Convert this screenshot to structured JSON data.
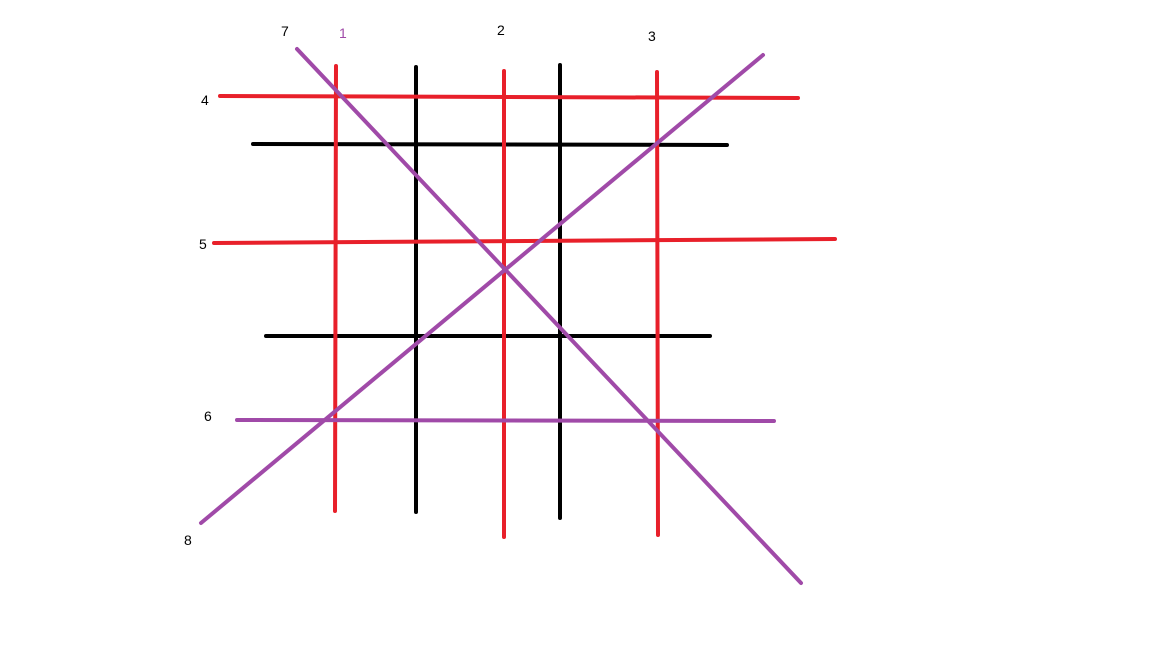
{
  "colors": {
    "red": "#e8202a",
    "black": "#000000",
    "purple": "#a04aa8",
    "label_black": "#000000",
    "label_purple": "#a04aa8"
  },
  "labels": {
    "l1": "1",
    "l2": "2",
    "l3": "3",
    "l4": "4",
    "l5": "5",
    "l6": "6",
    "l7": "7",
    "l8": "8"
  }
}
